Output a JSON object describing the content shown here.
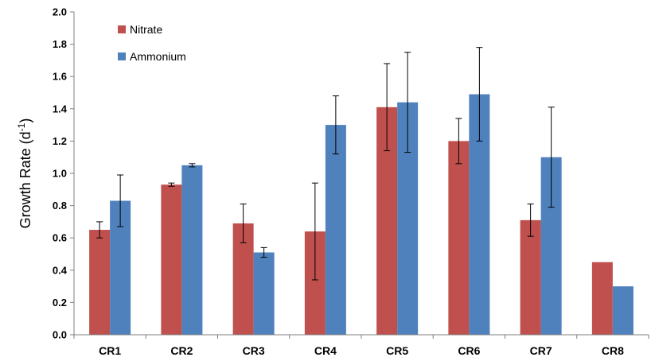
{
  "chart_data": {
    "type": "bar",
    "title": "",
    "xlabel": "",
    "ylabel": "Growth Rate (d",
    "ylabel_sup": "-1",
    "ylabel_close": ")",
    "ylim": [
      0,
      2.0
    ],
    "yticks": [
      "0.0",
      "0.2",
      "0.4",
      "0.6",
      "0.8",
      "1.0",
      "1.2",
      "1.4",
      "1.6",
      "1.8",
      "2.0"
    ],
    "grid": false,
    "legend_position": "top-left",
    "categories": [
      "CR1",
      "CR2",
      "CR3",
      "CR4",
      "CR5",
      "CR6",
      "CR7",
      "CR8"
    ],
    "series": [
      {
        "name": "Nitrate",
        "color": "#c0504d",
        "values": [
          0.65,
          0.93,
          0.69,
          0.64,
          1.41,
          1.2,
          0.71,
          0.45
        ],
        "error": [
          0.05,
          0.01,
          0.12,
          0.3,
          0.27,
          0.14,
          0.1,
          null
        ]
      },
      {
        "name": "Ammonium",
        "color": "#4f81bd",
        "values": [
          0.83,
          1.05,
          0.51,
          1.3,
          1.44,
          1.49,
          1.1,
          0.3
        ],
        "error": [
          0.16,
          0.01,
          0.03,
          0.18,
          0.31,
          0.29,
          0.31,
          null
        ]
      }
    ]
  }
}
